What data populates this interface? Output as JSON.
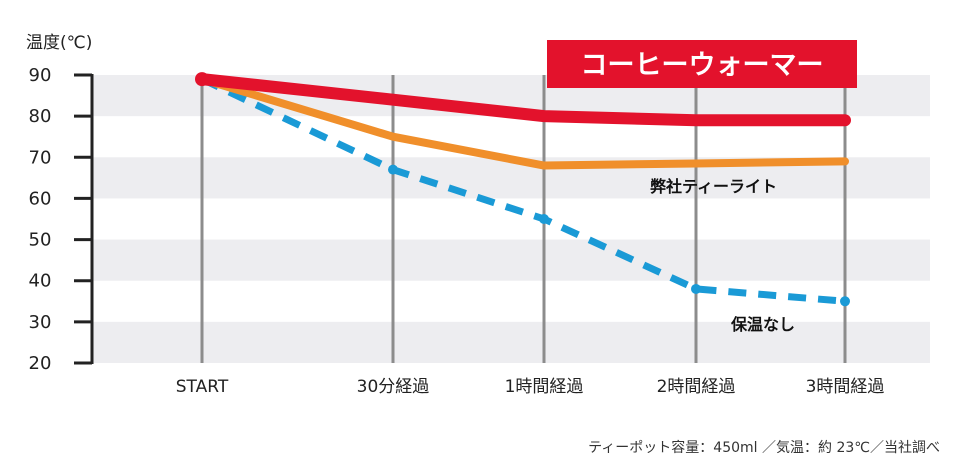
{
  "chart_data": {
    "type": "line",
    "ylabel": "温度(℃)",
    "ylim": [
      20,
      90
    ],
    "yticks": [
      "90",
      "80",
      "70",
      "60",
      "50",
      "40",
      "30",
      "20"
    ],
    "categories": [
      "START",
      "30分経過",
      "1時間経過",
      "2時間経過",
      "3時間経過"
    ],
    "series": [
      {
        "name": "コーヒーウォーマー",
        "values": [
          89,
          84,
          80,
          79,
          79
        ],
        "color": "#e3122c",
        "style": "solid"
      },
      {
        "name": "弊社ティーライト",
        "values": [
          89,
          75,
          68,
          68.5,
          69
        ],
        "color": "#f08f2b",
        "style": "solid"
      },
      {
        "name": "保温なし",
        "values": [
          89,
          67,
          55,
          38,
          35
        ],
        "color": "#1a9ad6",
        "style": "dashed"
      }
    ],
    "legend_title": "コーヒーウォーマー",
    "footnote": "ティーポット容量：450ml ／気温：約 23℃／当社調べ"
  }
}
